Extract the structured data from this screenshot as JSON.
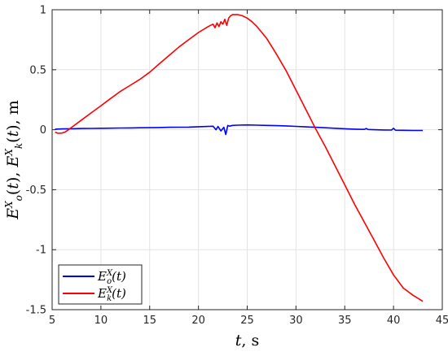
{
  "chart_data": {
    "type": "line",
    "title": "",
    "xlabel": "t, s",
    "ylabel": "E_o^X(t), E_k^X(t), m",
    "xlim": [
      5,
      45
    ],
    "ylim": [
      -1.5,
      1
    ],
    "xticks": [
      5,
      10,
      15,
      20,
      25,
      30,
      35,
      40,
      45
    ],
    "xtick_labels": [
      "5",
      "10",
      "15",
      "20",
      "25",
      "30",
      "35",
      "40",
      "45"
    ],
    "yticks": [
      -1.5,
      -1,
      -0.5,
      0,
      0.5,
      1
    ],
    "ytick_labels": [
      "-1.5",
      "-1",
      "-0.5",
      "0",
      "0.5",
      "1"
    ],
    "grid": true,
    "legend_position": "bottom-left",
    "series": [
      {
        "name": "E_o^X(t)",
        "color": "#0000ff",
        "x": [
          5.3,
          6,
          7,
          8,
          9,
          10,
          11,
          12,
          13,
          14,
          15,
          16,
          17,
          18,
          19,
          20,
          21,
          21.5,
          21.8,
          22.0,
          22.3,
          22.6,
          22.8,
          23.0,
          23.2,
          23.5,
          24,
          25,
          26,
          27,
          28,
          29,
          30,
          31,
          32,
          33,
          34,
          35,
          36,
          37,
          37.2,
          37.4,
          38,
          39,
          39.8,
          40.0,
          40.2,
          41,
          42,
          43
        ],
        "y": [
          0.005,
          0.007,
          0.008,
          0.01,
          0.011,
          0.012,
          0.013,
          0.014,
          0.015,
          0.016,
          0.017,
          0.018,
          0.02,
          0.021,
          0.022,
          0.025,
          0.028,
          0.029,
          0.0,
          0.027,
          -0.01,
          0.02,
          -0.04,
          0.035,
          0.03,
          0.036,
          0.038,
          0.04,
          0.038,
          0.036,
          0.034,
          0.032,
          0.028,
          0.024,
          0.02,
          0.016,
          0.012,
          0.008,
          0.005,
          0.003,
          0.01,
          0.002,
          0.0,
          -0.002,
          -0.003,
          0.012,
          -0.004,
          -0.005,
          -0.006,
          -0.006
        ]
      },
      {
        "name": "E_k^X(t)",
        "color": "#ff0000",
        "x": [
          5.3,
          5.6,
          6.0,
          6.3,
          6.6,
          7.0,
          8,
          9,
          10,
          11,
          12,
          13,
          14,
          15,
          16,
          17,
          18,
          19,
          20,
          21,
          21.5,
          21.7,
          21.9,
          22.1,
          22.3,
          22.5,
          22.7,
          22.9,
          23.1,
          23.3,
          23.5,
          24,
          24.5,
          25,
          25.5,
          26,
          27,
          28,
          29,
          30,
          31,
          32,
          33,
          34,
          35,
          36,
          37,
          38,
          39,
          40,
          41,
          42,
          43
        ],
        "y": [
          -0.02,
          -0.03,
          -0.028,
          -0.02,
          -0.005,
          0.02,
          0.08,
          0.14,
          0.2,
          0.26,
          0.32,
          0.37,
          0.42,
          0.48,
          0.55,
          0.62,
          0.69,
          0.75,
          0.81,
          0.86,
          0.88,
          0.85,
          0.89,
          0.86,
          0.9,
          0.88,
          0.92,
          0.87,
          0.93,
          0.95,
          0.96,
          0.96,
          0.95,
          0.93,
          0.9,
          0.86,
          0.76,
          0.63,
          0.49,
          0.33,
          0.17,
          0.01,
          -0.14,
          -0.3,
          -0.46,
          -0.62,
          -0.77,
          -0.92,
          -1.07,
          -1.21,
          -1.32,
          -1.38,
          -1.43
        ]
      }
    ]
  }
}
